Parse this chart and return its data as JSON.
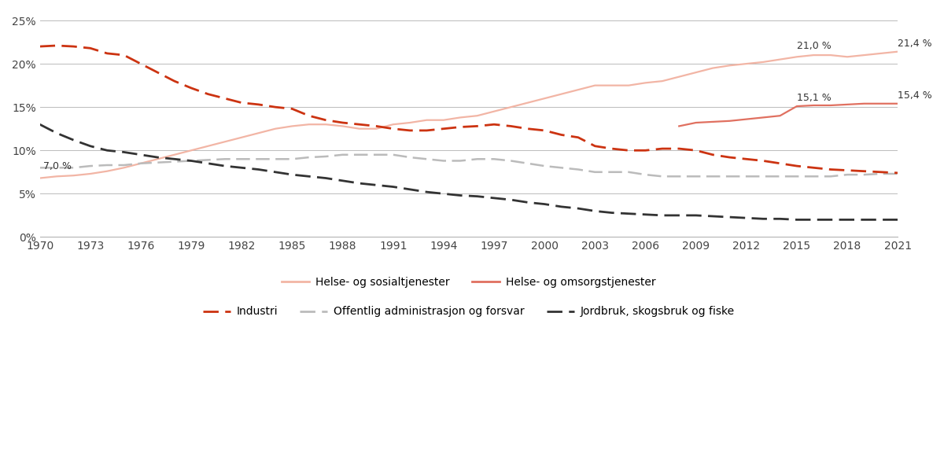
{
  "years": [
    1970,
    1971,
    1972,
    1973,
    1974,
    1975,
    1976,
    1977,
    1978,
    1979,
    1980,
    1981,
    1982,
    1983,
    1984,
    1985,
    1986,
    1987,
    1988,
    1989,
    1990,
    1991,
    1992,
    1993,
    1994,
    1995,
    1996,
    1997,
    1998,
    1999,
    2000,
    2001,
    2002,
    2003,
    2004,
    2005,
    2006,
    2007,
    2008,
    2009,
    2010,
    2011,
    2012,
    2013,
    2014,
    2015,
    2016,
    2017,
    2018,
    2019,
    2020,
    2021
  ],
  "industri": [
    22.0,
    22.1,
    22.0,
    21.8,
    21.2,
    21.0,
    20.0,
    19.0,
    18.0,
    17.2,
    16.5,
    16.0,
    15.5,
    15.3,
    15.0,
    14.8,
    14.0,
    13.5,
    13.2,
    13.0,
    12.8,
    12.5,
    12.3,
    12.3,
    12.5,
    12.7,
    12.8,
    13.0,
    12.8,
    12.5,
    12.3,
    11.8,
    11.5,
    10.5,
    10.2,
    10.0,
    10.0,
    10.2,
    10.2,
    10.0,
    9.5,
    9.2,
    9.0,
    8.8,
    8.5,
    8.2,
    8.0,
    7.8,
    7.7,
    7.6,
    7.5,
    7.4
  ],
  "helse_sosial": [
    6.8,
    7.0,
    7.1,
    7.3,
    7.6,
    8.0,
    8.5,
    9.0,
    9.5,
    10.0,
    10.5,
    11.0,
    11.5,
    12.0,
    12.5,
    12.8,
    13.0,
    13.0,
    12.8,
    12.5,
    12.5,
    13.0,
    13.2,
    13.5,
    13.5,
    13.8,
    14.0,
    14.5,
    15.0,
    15.5,
    16.0,
    16.5,
    17.0,
    17.5,
    17.5,
    17.5,
    17.8,
    18.0,
    18.5,
    19.0,
    19.5,
    19.8,
    20.0,
    20.2,
    20.5,
    20.8,
    21.0,
    21.0,
    20.8,
    21.0,
    21.2,
    21.4
  ],
  "helse_omsorg_years": [
    2008,
    2009,
    2010,
    2011,
    2012,
    2013,
    2014,
    2015,
    2016,
    2017,
    2018,
    2019,
    2020,
    2021
  ],
  "helse_omsorg_values": [
    12.8,
    13.2,
    13.3,
    13.4,
    13.6,
    13.8,
    14.0,
    15.1,
    15.2,
    15.2,
    15.3,
    15.4,
    15.4,
    15.4
  ],
  "offentlig_admin": [
    8.0,
    8.0,
    8.0,
    8.2,
    8.3,
    8.3,
    8.5,
    8.6,
    8.7,
    8.8,
    8.9,
    9.0,
    9.0,
    9.0,
    9.0,
    9.0,
    9.2,
    9.3,
    9.5,
    9.5,
    9.5,
    9.5,
    9.2,
    9.0,
    8.8,
    8.8,
    9.0,
    9.0,
    8.8,
    8.5,
    8.2,
    8.0,
    7.8,
    7.5,
    7.5,
    7.5,
    7.2,
    7.0,
    7.0,
    7.0,
    7.0,
    7.0,
    7.0,
    7.0,
    7.0,
    7.0,
    7.0,
    7.0,
    7.2,
    7.2,
    7.3,
    7.3
  ],
  "jordbruk": [
    13.0,
    12.0,
    11.2,
    10.5,
    10.0,
    9.8,
    9.5,
    9.2,
    9.0,
    8.8,
    8.5,
    8.2,
    8.0,
    7.8,
    7.5,
    7.2,
    7.0,
    6.8,
    6.5,
    6.2,
    6.0,
    5.8,
    5.5,
    5.2,
    5.0,
    4.8,
    4.7,
    4.5,
    4.3,
    4.0,
    3.8,
    3.5,
    3.3,
    3.0,
    2.8,
    2.7,
    2.6,
    2.5,
    2.5,
    2.5,
    2.4,
    2.3,
    2.2,
    2.1,
    2.1,
    2.0,
    2.0,
    2.0,
    2.0,
    2.0,
    2.0,
    2.0
  ],
  "ylim": [
    0,
    26
  ],
  "yticks": [
    0,
    5,
    10,
    15,
    20,
    25
  ],
  "ytick_labels": [
    "0%",
    "5%",
    "10%",
    "15%",
    "20%",
    "25%"
  ],
  "xtick_years": [
    1970,
    1973,
    1976,
    1979,
    1982,
    1985,
    1988,
    1991,
    1994,
    1997,
    2000,
    2003,
    2006,
    2009,
    2012,
    2015,
    2018,
    2021
  ],
  "color_industri": "#CC3311",
  "color_helse_sosial": "#F2B5A5",
  "color_helse_omsorg": "#E07060",
  "color_offentlig": "#BBBBBB",
  "color_jordbruk": "#333333",
  "bg_color": "#FFFFFF",
  "legend_row1": [
    "Helse- og sosialtjenester",
    "Helse- og omsorgstjenester"
  ],
  "legend_row2": [
    "Industri",
    "Offentlig administrasjon og forsvar",
    "Jordbruk, skogsbruk og fiske"
  ]
}
